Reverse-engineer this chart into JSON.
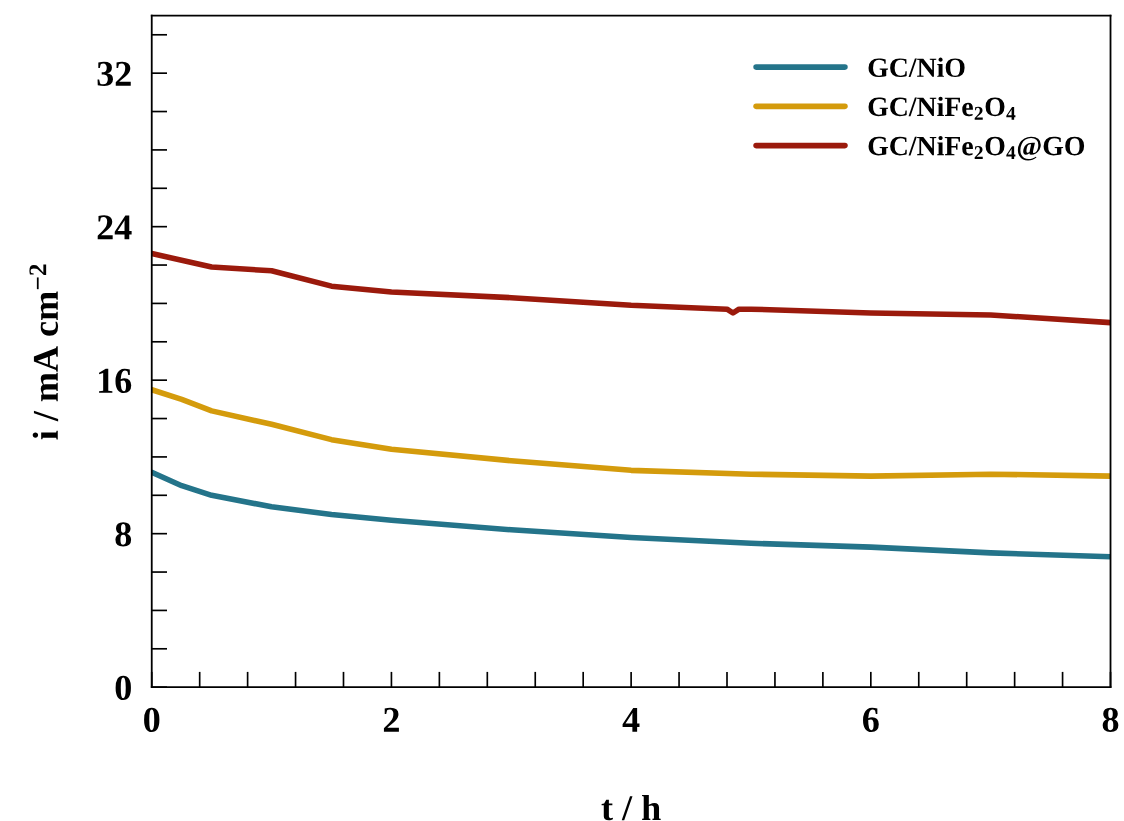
{
  "chart_data": {
    "type": "line",
    "xlabel": "t / h",
    "ylabel": "i / mA cm$^{−2}$",
    "series": [
      {
        "name": "GC/NiO",
        "color": "#24748a",
        "x": [
          0,
          0.25,
          0.5,
          1,
          1.5,
          2,
          3,
          4,
          5,
          6,
          7,
          8
        ],
        "values": [
          11.2,
          10.5,
          10.0,
          9.4,
          9.0,
          8.7,
          8.2,
          7.8,
          7.5,
          7.3,
          7.0,
          6.8
        ]
      },
      {
        "name": "GC/NiFe$_{2}$O$_{4}$",
        "color": "#d49b0c",
        "x": [
          0,
          0.25,
          0.5,
          1,
          1.5,
          2,
          3,
          4,
          5,
          6,
          7,
          8
        ],
        "values": [
          15.5,
          15.0,
          14.4,
          13.7,
          12.9,
          12.4,
          11.8,
          11.3,
          11.1,
          11.0,
          11.1,
          11.0
        ]
      },
      {
        "name": "GC/NiFe$_{2}$O$_{4}$@GO",
        "color": "#9b1a0c",
        "x": [
          0,
          0.5,
          1,
          1.5,
          2,
          3,
          4,
          4.8,
          4.85,
          4.9,
          5,
          6,
          7,
          8
        ],
        "values": [
          22.6,
          21.9,
          21.7,
          20.9,
          20.6,
          20.3,
          19.9,
          19.7,
          19.5,
          19.7,
          19.7,
          19.5,
          19.4,
          19.0
        ]
      }
    ],
    "xlim": [
      0,
      8
    ],
    "ylim": [
      0,
      35
    ],
    "xticks": [
      0,
      {
        "value": 0.4,
        "label": null
      },
      {
        "value": 0.8,
        "label": null
      },
      {
        "value": 1.2,
        "label": null
      },
      {
        "value": 1.6,
        "label": null
      },
      2,
      {
        "value": 2.4,
        "label": null
      },
      {
        "value": 2.8,
        "label": null
      },
      {
        "value": 3.2,
        "label": null
      },
      {
        "value": 3.6,
        "label": null
      },
      4,
      {
        "value": 4.4,
        "label": null
      },
      {
        "value": 4.8,
        "label": null
      },
      {
        "value": 5.2,
        "label": null
      },
      {
        "value": 5.6,
        "label": null
      },
      6,
      {
        "value": 6.4,
        "label": null
      },
      {
        "value": 6.8,
        "label": null
      },
      {
        "value": 7.2,
        "label": null
      },
      {
        "value": 7.6,
        "label": null
      },
      8
    ],
    "yticks": [
      0,
      {
        "value": 2,
        "label": null
      },
      {
        "value": 4,
        "label": null
      },
      {
        "value": 6,
        "label": null
      },
      8,
      {
        "value": 10,
        "label": null
      },
      {
        "value": 12,
        "label": null
      },
      {
        "value": 14,
        "label": null
      },
      16,
      {
        "value": 18,
        "label": null
      },
      {
        "value": 20,
        "label": null
      },
      {
        "value": 22,
        "label": null
      },
      24,
      {
        "value": 26,
        "label": null
      },
      {
        "value": 28,
        "label": null
      },
      {
        "value": 30,
        "label": null
      },
      32,
      {
        "value": 34,
        "label": null
      }
    ],
    "grid": false,
    "legend": "top right",
    "marker": "none",
    "line_style": "solid"
  }
}
